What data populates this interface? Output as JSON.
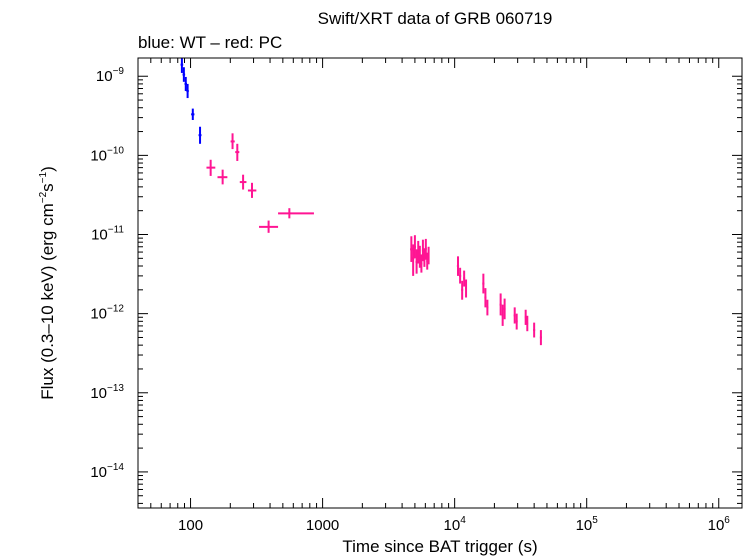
{
  "chart_data": {
    "type": "scatter",
    "title": "Swift/XRT data of GRB 060719",
    "subtitle": "blue: WT – red: PC",
    "xlabel": "Time since BAT trigger (s)",
    "ylabel": {
      "prefix": "Flux (0.3–10 keV) (erg cm",
      "exp1": "−2",
      "middle": "s",
      "exp2": "−1",
      "suffix": ")"
    },
    "xscale": "log",
    "yscale": "log",
    "xlim": [
      40,
      1500000
    ],
    "ylim": [
      3.5e-15,
      1.7e-09
    ],
    "x_ticks": [
      {
        "value": 100,
        "base": "100",
        "exp": ""
      },
      {
        "value": 1000,
        "base": "1000",
        "exp": ""
      },
      {
        "value": 10000,
        "base": "10",
        "exp": "4"
      },
      {
        "value": 100000,
        "base": "10",
        "exp": "5"
      },
      {
        "value": 1000000,
        "base": "10",
        "exp": "6"
      }
    ],
    "y_ticks": [
      {
        "value": 1e-09,
        "base": "10",
        "exp": "−9"
      },
      {
        "value": 1e-10,
        "base": "10",
        "exp": "−10"
      },
      {
        "value": 1e-11,
        "base": "10",
        "exp": "−11"
      },
      {
        "value": 1e-12,
        "base": "10",
        "exp": "−12"
      },
      {
        "value": 1e-13,
        "base": "10",
        "exp": "−13"
      },
      {
        "value": 1e-14,
        "base": "10",
        "exp": "−14"
      }
    ],
    "grid": false,
    "series": [
      {
        "color": "#0000ff",
        "points": [
          {
            "x": 86,
            "y": 1.4e-09,
            "xerr": [
              84,
              88
            ],
            "yerr": [
              1.1e-09,
              1.7e-09
            ]
          },
          {
            "x": 89,
            "y": 1.05e-09,
            "xerr": [
              87,
              91
            ],
            "yerr": [
              8.5e-10,
              1.3e-09
            ]
          },
          {
            "x": 92,
            "y": 8e-10,
            "xerr": [
              90,
              94
            ],
            "yerr": [
              6.5e-10,
              9.8e-10
            ]
          },
          {
            "x": 95,
            "y": 6.5e-10,
            "xerr": [
              93,
              97
            ],
            "yerr": [
              5.3e-10,
              8e-10
            ]
          },
          {
            "x": 104,
            "y": 3.3e-10,
            "xerr": [
              101,
              107
            ],
            "yerr": [
              2.8e-10,
              3.9e-10
            ]
          },
          {
            "x": 118,
            "y": 1.8e-10,
            "xerr": [
              115,
              121
            ],
            "yerr": [
              1.4e-10,
              2.3e-10
            ]
          }
        ]
      },
      {
        "color": "#ff1493",
        "points": [
          {
            "x": 142,
            "y": 7e-11,
            "xerr": [
              132,
              154
            ],
            "yerr": [
              5.5e-11,
              8.8e-11
            ]
          },
          {
            "x": 175,
            "y": 5.3e-11,
            "xerr": [
              160,
              190
            ],
            "yerr": [
              4.3e-11,
              6.6e-11
            ]
          },
          {
            "x": 208,
            "y": 1.5e-10,
            "xerr": [
              201,
              216
            ],
            "yerr": [
              1.2e-10,
              1.9e-10
            ]
          },
          {
            "x": 226,
            "y": 1.1e-10,
            "xerr": [
              218,
              234
            ],
            "yerr": [
              8.5e-11,
              1.4e-10
            ]
          },
          {
            "x": 250,
            "y": 4.6e-11,
            "xerr": [
              236,
              265
            ],
            "yerr": [
              3.7e-11,
              5.7e-11
            ]
          },
          {
            "x": 292,
            "y": 3.6e-11,
            "xerr": [
              272,
              315
            ],
            "yerr": [
              2.9e-11,
              4.5e-11
            ]
          },
          {
            "x": 390,
            "y": 1.25e-11,
            "xerr": [
              330,
              460
            ],
            "yerr": [
              1.05e-11,
              1.5e-11
            ]
          },
          {
            "x": 560,
            "y": 1.85e-11,
            "xerr": [
              460,
              860
            ],
            "yerr": [
              1.6e-11,
              2.15e-11
            ]
          },
          {
            "x": 4700,
            "y": 6.5e-12,
            "xerr": [
              4600,
              4800
            ],
            "yerr": [
              4.5e-12,
              9.5e-12
            ]
          },
          {
            "x": 4850,
            "y": 5e-12,
            "xerr": [
              4750,
              4950
            ],
            "yerr": [
              3e-12,
              7.5e-12
            ]
          },
          {
            "x": 5000,
            "y": 7e-12,
            "xerr": [
              4900,
              5100
            ],
            "yerr": [
              5e-12,
              9.8e-12
            ]
          },
          {
            "x": 5150,
            "y": 4.5e-12,
            "xerr": [
              5050,
              5250
            ],
            "yerr": [
              3.2e-12,
              6.5e-12
            ]
          },
          {
            "x": 5300,
            "y": 6e-12,
            "xerr": [
              5200,
              5400
            ],
            "yerr": [
              4.3e-12,
              8.3e-12
            ]
          },
          {
            "x": 5450,
            "y": 5.2e-12,
            "xerr": [
              5350,
              5550
            ],
            "yerr": [
              3.8e-12,
              7.2e-12
            ]
          },
          {
            "x": 5600,
            "y": 4.3e-12,
            "xerr": [
              5500,
              5700
            ],
            "yerr": [
              3.3e-12,
              5.6e-12
            ]
          },
          {
            "x": 5750,
            "y": 6.3e-12,
            "xerr": [
              5650,
              5850
            ],
            "yerr": [
              4.6e-12,
              8.6e-12
            ]
          },
          {
            "x": 5900,
            "y": 5.1e-12,
            "xerr": [
              5800,
              6000
            ],
            "yerr": [
              3.9e-12,
              6.7e-12
            ]
          },
          {
            "x": 6050,
            "y": 6.6e-12,
            "xerr": [
              5950,
              6150
            ],
            "yerr": [
              4.8e-12,
              8.8e-12
            ]
          },
          {
            "x": 6200,
            "y": 4.6e-12,
            "xerr": [
              6100,
              6300
            ],
            "yerr": [
              3.6e-12,
              5.9e-12
            ]
          },
          {
            "x": 6350,
            "y": 5.5e-12,
            "xerr": [
              6250,
              6450
            ],
            "yerr": [
              4.2e-12,
              7e-12
            ]
          },
          {
            "x": 10600,
            "y": 4e-12,
            "xerr": [
              10400,
              10800
            ],
            "yerr": [
              3e-12,
              5.3e-12
            ]
          },
          {
            "x": 11000,
            "y": 3e-12,
            "xerr": [
              10800,
              11200
            ],
            "yerr": [
              2.4e-12,
              3.8e-12
            ]
          },
          {
            "x": 11400,
            "y": 2e-12,
            "xerr": [
              11200,
              11600
            ],
            "yerr": [
              1.5e-12,
              2.6e-12
            ]
          },
          {
            "x": 11800,
            "y": 2.8e-12,
            "xerr": [
              11600,
              12000
            ],
            "yerr": [
              2.2e-12,
              3.5e-12
            ]
          },
          {
            "x": 12200,
            "y": 2.1e-12,
            "xerr": [
              12000,
              12400
            ],
            "yerr": [
              1.6e-12,
              2.7e-12
            ]
          },
          {
            "x": 16500,
            "y": 2.4e-12,
            "xerr": [
              16200,
              16800
            ],
            "yerr": [
              1.8e-12,
              3.2e-12
            ]
          },
          {
            "x": 17100,
            "y": 1.6e-12,
            "xerr": [
              16800,
              17400
            ],
            "yerr": [
              1.2e-12,
              2.1e-12
            ]
          },
          {
            "x": 17700,
            "y": 1.2e-12,
            "xerr": [
              17400,
              18000
            ],
            "yerr": [
              9.5e-13,
              1.5e-12
            ]
          },
          {
            "x": 22300,
            "y": 1.3e-12,
            "xerr": [
              21900,
              22700
            ],
            "yerr": [
              9.5e-13,
              1.8e-12
            ]
          },
          {
            "x": 23100,
            "y": 9.5e-13,
            "xerr": [
              22700,
              23500
            ],
            "yerr": [
              7e-13,
              1.3e-12
            ]
          },
          {
            "x": 23900,
            "y": 1.15e-12,
            "xerr": [
              23500,
              24300
            ],
            "yerr": [
              8.5e-13,
              1.55e-12
            ]
          },
          {
            "x": 28500,
            "y": 9.5e-13,
            "xerr": [
              28000,
              29000
            ],
            "yerr": [
              7.5e-13,
              1.2e-12
            ]
          },
          {
            "x": 29500,
            "y": 8e-13,
            "xerr": [
              29000,
              30000
            ],
            "yerr": [
              6.3e-13,
              1e-12
            ]
          },
          {
            "x": 34500,
            "y": 9e-13,
            "xerr": [
              34000,
              35000
            ],
            "yerr": [
              7.2e-13,
              1.12e-12
            ]
          },
          {
            "x": 35500,
            "y": 7.5e-13,
            "xerr": [
              35000,
              36000
            ],
            "yerr": [
              6e-13,
              9.4e-13
            ]
          },
          {
            "x": 40000,
            "y": 6.2e-13,
            "xerr": [
              39300,
              40700
            ],
            "yerr": [
              5e-13,
              7.7e-13
            ]
          },
          {
            "x": 45000,
            "y": 5e-13,
            "xerr": [
              44200,
              45800
            ],
            "yerr": [
              4e-13,
              6.2e-13
            ]
          }
        ]
      }
    ]
  }
}
